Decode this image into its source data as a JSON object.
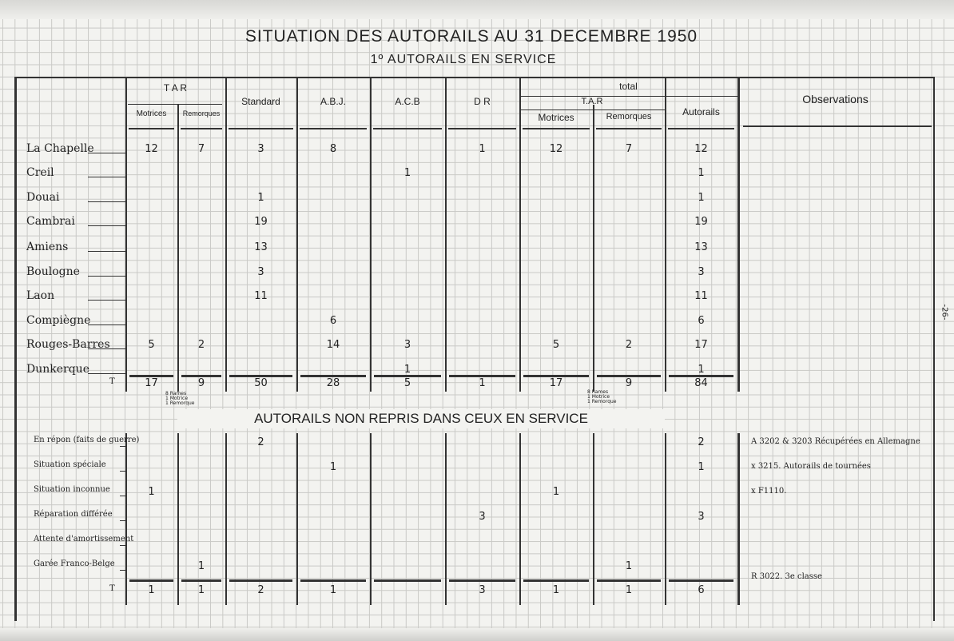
{
  "title": "SITUATION DES AUTORAILS AU 31 DECEMBRE 1950",
  "subtitle": "1º AUTORAILS EN SERVICE",
  "page_number": "-26-",
  "headers": {
    "tar": "T A R",
    "motrices": "Motrices",
    "remorques": "Remorques",
    "standard": "Standard",
    "abj": "A.B.J.",
    "acb": "A.C.B",
    "dr": "D R",
    "total": "total",
    "total_tar": "T.A.R",
    "total_motrices": "Motrices",
    "total_remorques": "Remorques",
    "autorails": "Autorails",
    "observations": "Observations"
  },
  "in_service": {
    "rows": [
      {
        "label": "La Chapelle",
        "values": [
          "12",
          "7",
          "3",
          "8",
          "",
          "1",
          "12",
          "7",
          "12"
        ]
      },
      {
        "label": "Creil",
        "values": [
          "",
          "",
          "",
          "",
          "1",
          "",
          "",
          "",
          "1"
        ]
      },
      {
        "label": "Douai",
        "values": [
          "",
          "",
          "1",
          "",
          "",
          "",
          "",
          "",
          "1"
        ]
      },
      {
        "label": "Cambrai",
        "values": [
          "",
          "",
          "19",
          "",
          "",
          "",
          "",
          "",
          "19"
        ]
      },
      {
        "label": "Amiens",
        "values": [
          "",
          "",
          "13",
          "",
          "",
          "",
          "",
          "",
          "13"
        ]
      },
      {
        "label": "Boulogne",
        "values": [
          "",
          "",
          "3",
          "",
          "",
          "",
          "",
          "",
          "3"
        ]
      },
      {
        "label": "Laon",
        "values": [
          "",
          "",
          "11",
          "",
          "",
          "",
          "",
          "",
          "11"
        ]
      },
      {
        "label": "Compiègne",
        "values": [
          "",
          "",
          "",
          "6",
          "",
          "",
          "",
          "",
          "6"
        ]
      },
      {
        "label": "Rouges-Barres",
        "values": [
          "5",
          "2",
          "",
          "14",
          "3",
          "",
          "5",
          "2",
          "17"
        ]
      },
      {
        "label": "Dunkerque",
        "values": [
          "",
          "",
          "",
          "",
          "1",
          "",
          "",
          "",
          "1"
        ]
      }
    ],
    "total": {
      "label": "T",
      "values": [
        "17",
        "9",
        "50",
        "28",
        "5",
        "1",
        "17",
        "9",
        "84"
      ]
    },
    "tar_note": [
      "8 Rames",
      "1 Motrice",
      "1 Remorque"
    ]
  },
  "not_in_service": {
    "heading": "AUTORAILS NON REPRIS DANS CEUX EN SERVICE",
    "rows": [
      {
        "label": "En répon (faits de guerre)",
        "values": [
          "",
          "",
          "2",
          "",
          "",
          "",
          "",
          "",
          "2"
        ],
        "observation": "A 3202 & 3203 Récupérées en Allemagne"
      },
      {
        "label": "Situation spéciale",
        "values": [
          "",
          "",
          "",
          "1",
          "",
          "",
          "",
          "",
          "1"
        ],
        "observation": "x 3215. Autorails de tournées"
      },
      {
        "label": "Situation inconnue",
        "values": [
          "1",
          "",
          "",
          "",
          "",
          "",
          "1",
          "",
          ""
        ],
        "observation": "x F1110."
      },
      {
        "label": "Réparation différée",
        "values": [
          "",
          "",
          "",
          "",
          "",
          "3",
          "",
          "",
          "3"
        ],
        "observation": ""
      },
      {
        "label": "Attente d'amortissement",
        "values": [
          "",
          "",
          "",
          "",
          "",
          "",
          "",
          "",
          ""
        ],
        "observation": ""
      },
      {
        "label": "Garée Franco-Belge",
        "values": [
          "",
          "1",
          "",
          "",
          "",
          "",
          "",
          "1",
          ""
        ],
        "observation": ""
      }
    ],
    "total": {
      "label": "T",
      "values": [
        "1",
        "1",
        "2",
        "1",
        "",
        "3",
        "1",
        "1",
        "6"
      ]
    },
    "total_observation": "R 3022. 3e classe"
  }
}
